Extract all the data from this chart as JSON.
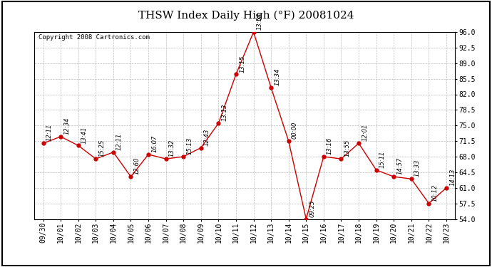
{
  "title": "THSW Index Daily High (°F) 20081024",
  "copyright": "Copyright 2008 Cartronics.com",
  "x_labels": [
    "09/30",
    "10/01",
    "10/02",
    "10/03",
    "10/04",
    "10/05",
    "10/06",
    "10/07",
    "10/08",
    "10/09",
    "10/10",
    "10/11",
    "10/12",
    "10/13",
    "10/14",
    "10/15",
    "10/16",
    "10/17",
    "10/18",
    "10/19",
    "10/20",
    "10/21",
    "10/22",
    "10/23"
  ],
  "y_values": [
    71.0,
    72.5,
    70.5,
    67.5,
    69.0,
    63.5,
    68.5,
    67.5,
    68.0,
    70.0,
    75.5,
    86.5,
    96.0,
    83.5,
    71.5,
    54.0,
    68.0,
    67.5,
    71.0,
    65.0,
    63.5,
    63.0,
    57.5,
    61.0
  ],
  "time_labels": [
    "12:11",
    "12:34",
    "13:41",
    "15:25",
    "12:11",
    "12:60",
    "16:07",
    "13:32",
    "15:13",
    "12:43",
    "13:13",
    "13:15",
    "13:54",
    "13:34",
    "00:00",
    "09:25",
    "13:16",
    "13:55",
    "12:01",
    "15:11",
    "14:57",
    "13:33",
    "10:12",
    "14:13"
  ],
  "ylim": [
    54.0,
    96.0
  ],
  "yticks": [
    54.0,
    57.5,
    61.0,
    64.5,
    68.0,
    71.5,
    75.0,
    78.5,
    82.0,
    85.5,
    89.0,
    92.5,
    96.0
  ],
  "line_color": "#cc0000",
  "marker_color": "#cc0000",
  "bg_color": "#ffffff",
  "grid_color": "#bbbbbb",
  "title_fontsize": 11,
  "label_fontsize": 7,
  "copyright_fontsize": 6.5,
  "time_label_fontsize": 6
}
